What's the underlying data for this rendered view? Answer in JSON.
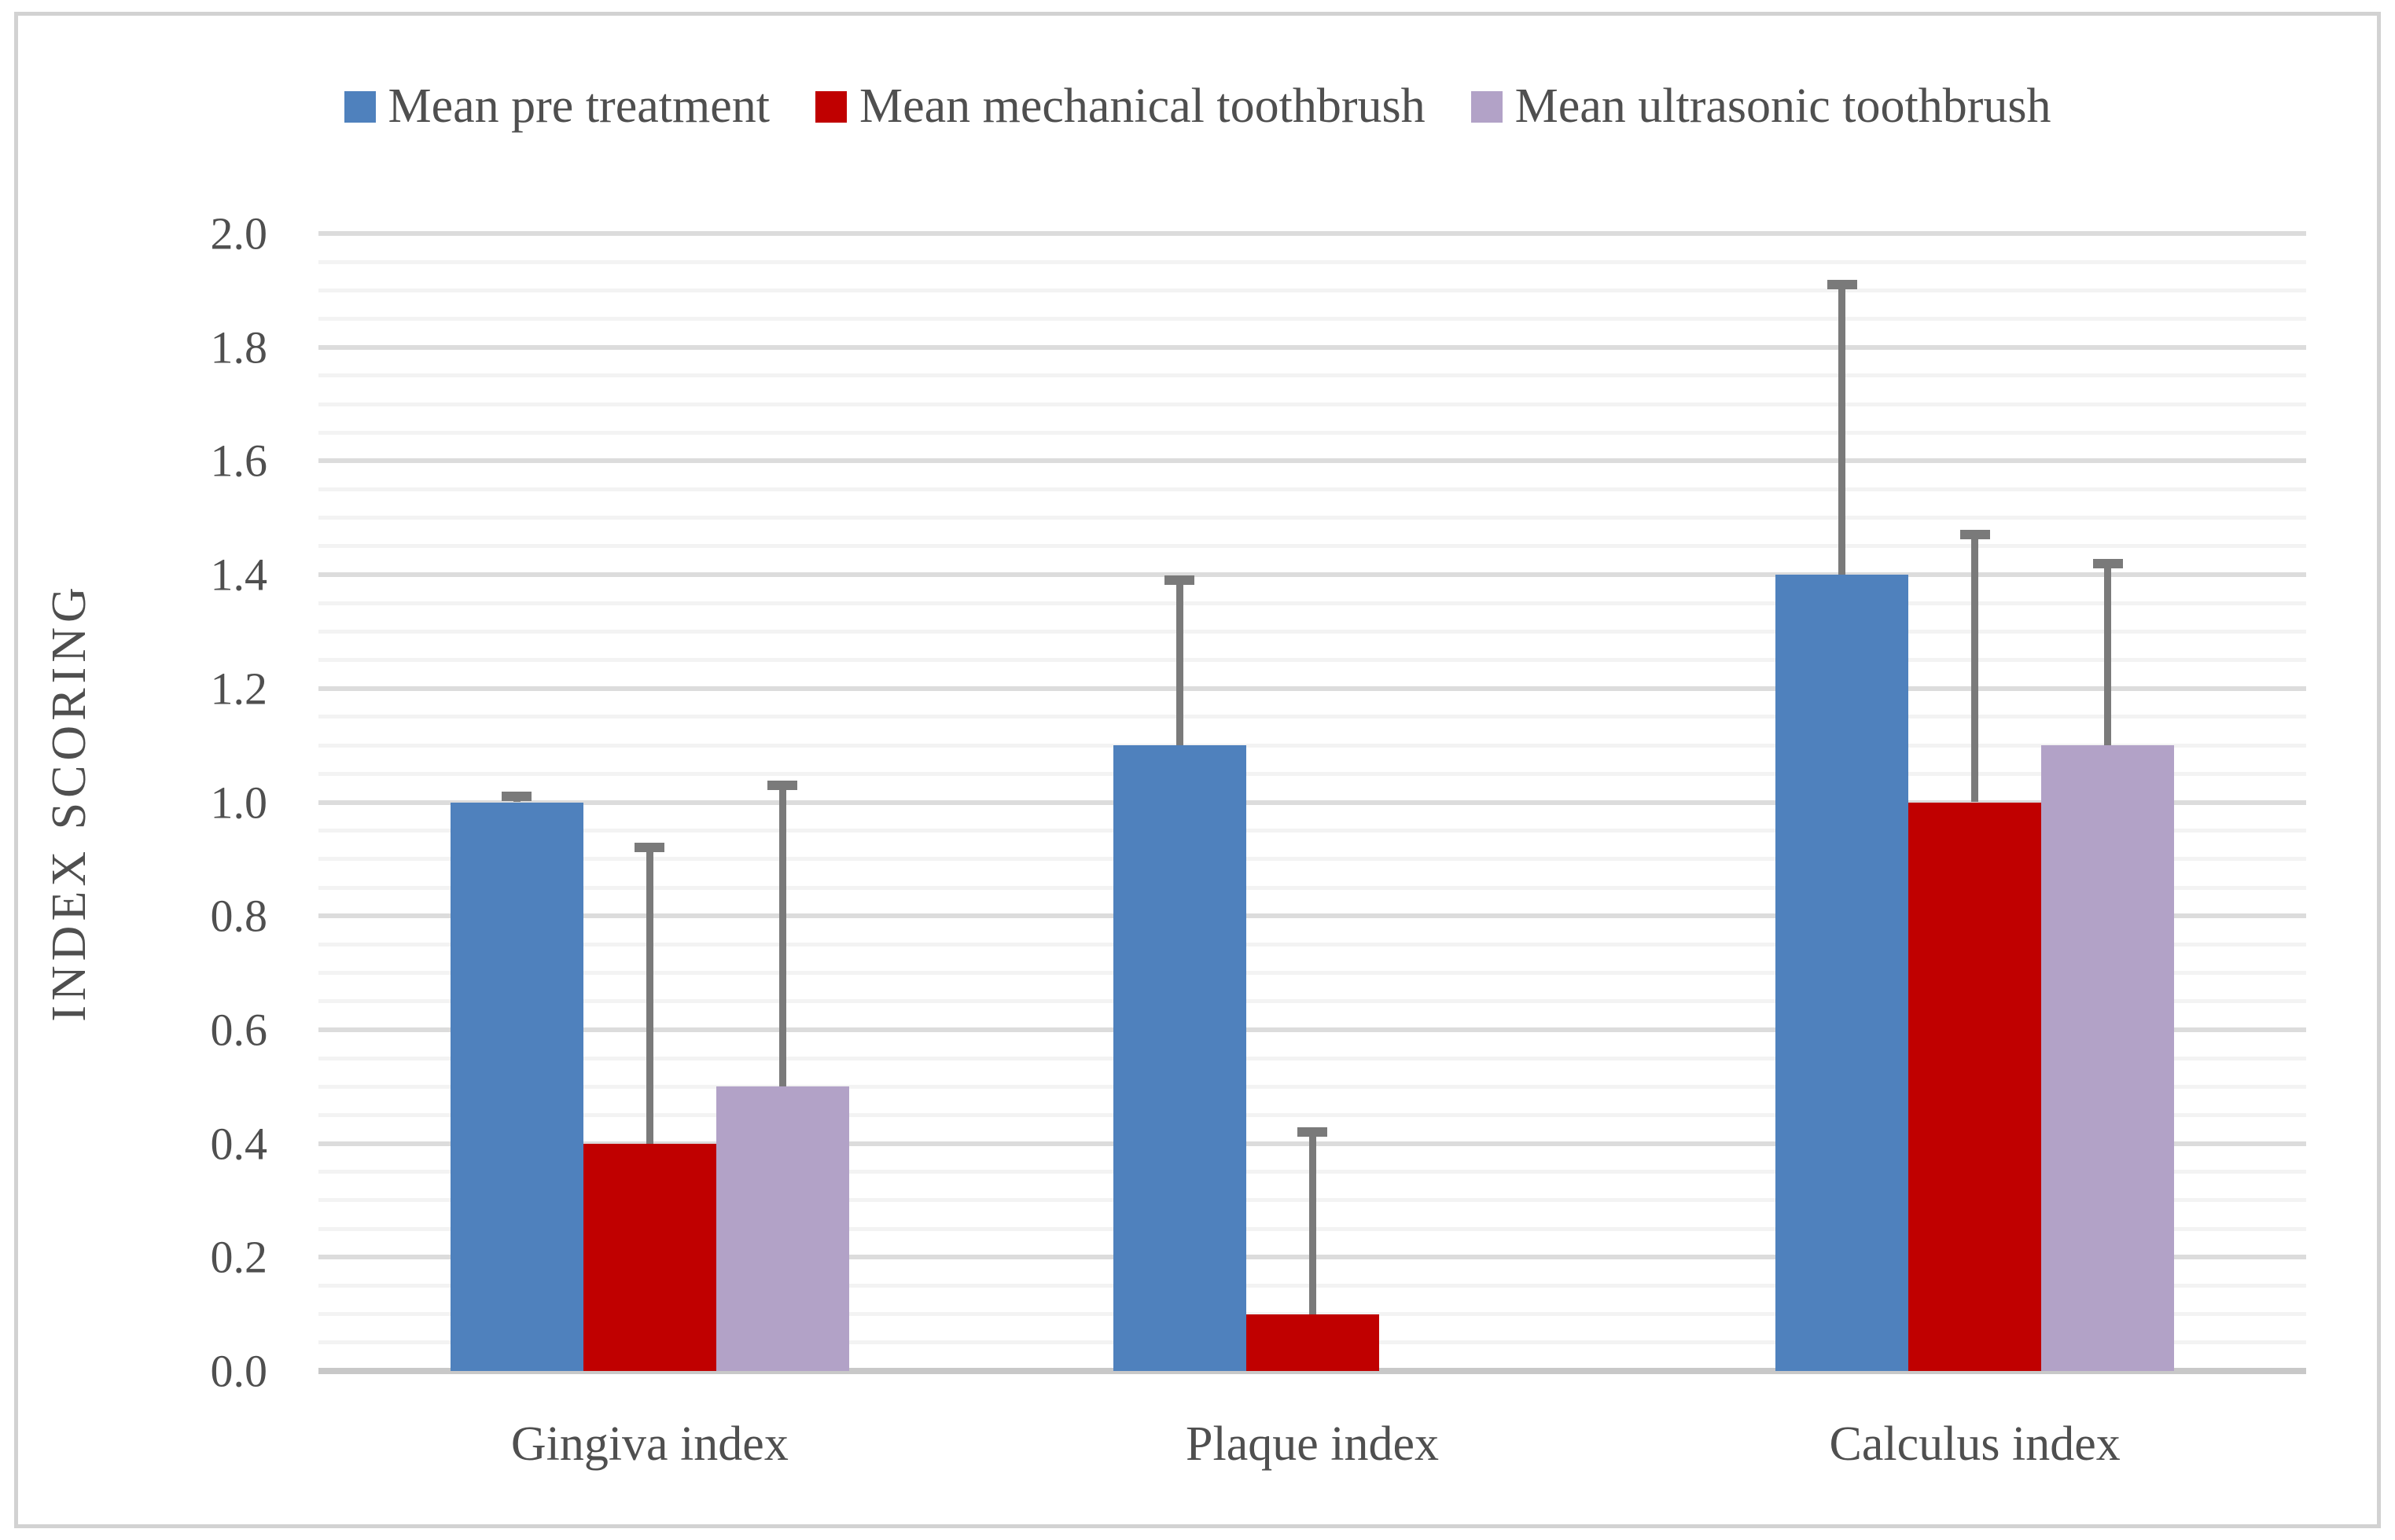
{
  "chart_data": {
    "type": "bar",
    "title": "",
    "categories": [
      "Gingiva index",
      "Plaque index",
      "Calculus index"
    ],
    "series": [
      {
        "name": "Mean pre treatment",
        "color": "#4F81BD",
        "values": [
          1.0,
          1.1,
          1.4
        ],
        "error_top": [
          1.01,
          1.39,
          1.91
        ]
      },
      {
        "name": "Mean mechanical toothbrush",
        "color": "#C00000",
        "values": [
          0.4,
          0.1,
          1.0
        ],
        "error_top": [
          0.92,
          0.42,
          1.47
        ]
      },
      {
        "name": "Mean ultrasonic toothbrush",
        "color": "#B2A2C7",
        "values": [
          0.5,
          0.0,
          1.1
        ],
        "error_top": [
          1.03,
          null,
          1.42
        ]
      }
    ],
    "xlabel": "",
    "ylabel": "INDEX SCORING",
    "ylim": [
      0.0,
      2.0
    ],
    "ytick_step": 0.2,
    "ytick_labels": [
      "0.0",
      "0.2",
      "0.4",
      "0.6",
      "0.8",
      "1.0",
      "1.2",
      "1.4",
      "1.6",
      "1.8",
      "2.0"
    ],
    "minor_gridline_step": 0.05,
    "grid": true,
    "legend_position": "top",
    "error_bars": "plus-direction-only"
  },
  "style": {
    "text_color": "#4f4f4f",
    "minor_gridline_color": "#f3f3f3",
    "major_gridline_color": "#dcdcdc",
    "axis_line_color": "#c8c8c8",
    "error_bar_color": "#7a7a7a",
    "frame_border_color": "#d2d2d2",
    "background_color": "#ffffff"
  }
}
